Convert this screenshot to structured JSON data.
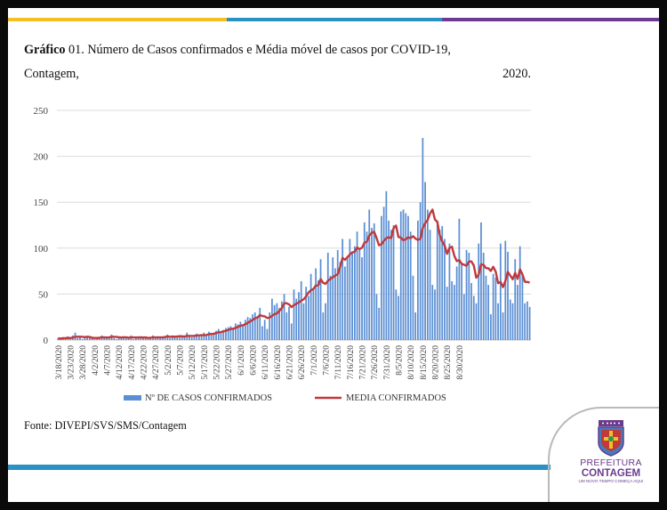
{
  "title": {
    "bold": "Gráfico",
    "line1_rest": " 01. Número de Casos confirmados e Média móvel de casos por COVID-19,",
    "line2_left": "Contagem,",
    "line2_right": "2020."
  },
  "source": "Fonte: DIVEPI/SVS/SMS/Contagem",
  "logo": {
    "line1": "PREFEITURA",
    "line2": "CONTAGEM",
    "line3": "UM NOVO TEMPO COMEÇA AQUI"
  },
  "colors": {
    "bars": "#5b8fd4",
    "line": "#c0393b",
    "band_yellow": "#f3c023",
    "band_blue": "#2a91c4",
    "band_purple": "#6b3a95",
    "logo_purple": "#6a3a8c"
  },
  "chart_data": {
    "type": "bar+line",
    "title": "",
    "xlabel": "",
    "ylabel": "",
    "ylim": [
      0,
      250
    ],
    "yticks": [
      0,
      50,
      100,
      150,
      200,
      250
    ],
    "grid": true,
    "legend_position": "bottom",
    "start_date": "3/18/2020",
    "tick_labels": [
      "3/18/2020",
      "3/23/2020",
      "3/28/2020",
      "4/2/2020",
      "4/7/2020",
      "4/12/2020",
      "4/17/2020",
      "4/22/2020",
      "4/27/2020",
      "5/2/2020",
      "5/7/2020",
      "5/12/2020",
      "5/17/2020",
      "5/22/2020",
      "5/27/2020",
      "6/1/2020",
      "6/6/2020",
      "6/11/2020",
      "6/16/2020",
      "6/21/2020",
      "6/26/2020",
      "7/1/2020",
      "7/6/2020",
      "7/11/2020",
      "7/16/2020",
      "7/21/2020",
      "7/26/2020",
      "7/31/2020",
      "8/5/2020",
      "8/10/2020",
      "8/15/2020",
      "8/20/2020",
      "8/25/2020",
      "8/30/2020"
    ],
    "series": [
      {
        "name": "Nº DE CASOS CONFIRMADOS",
        "type": "bar",
        "values": [
          2,
          1,
          3,
          2,
          4,
          1,
          5,
          8,
          2,
          3,
          1,
          2,
          4,
          3,
          2,
          1,
          3,
          2,
          5,
          4,
          2,
          3,
          6,
          2,
          1,
          3,
          2,
          4,
          3,
          2,
          5,
          1,
          2,
          3,
          4,
          2,
          3,
          1,
          2,
          5,
          3,
          4,
          2,
          3,
          4,
          6,
          2,
          5,
          3,
          4,
          5,
          3,
          4,
          8,
          4,
          3,
          5,
          7,
          4,
          6,
          8,
          5,
          9,
          7,
          8,
          10,
          12,
          9,
          11,
          13,
          14,
          15,
          12,
          18,
          17,
          20,
          16,
          22,
          25,
          24,
          28,
          30,
          26,
          35,
          15,
          22,
          12,
          30,
          45,
          38,
          40,
          35,
          42,
          50,
          30,
          36,
          18,
          55,
          45,
          52,
          64,
          40,
          58,
          48,
          72,
          55,
          78,
          65,
          88,
          30,
          40,
          95,
          70,
          90,
          78,
          98,
          85,
          110,
          80,
          90,
          110,
          95,
          102,
          118,
          98,
          90,
          128,
          118,
          142,
          122,
          127,
          50,
          35,
          135,
          145,
          162,
          130,
          120,
          125,
          55,
          48,
          140,
          142,
          138,
          135,
          118,
          70,
          30,
          130,
          150,
          220,
          172,
          142,
          120,
          60,
          55,
          130,
          120,
          124,
          110,
          58,
          105,
          64,
          60,
          80,
          132,
          82,
          50,
          98,
          95,
          62,
          48,
          40,
          105,
          128,
          95,
          70,
          60,
          28,
          72,
          68,
          40,
          105,
          30,
          108,
          96,
          44,
          40,
          88,
          60,
          102,
          70,
          40,
          42,
          36
        ]
      },
      {
        "name": "MEDIA CONFIRMADOS",
        "type": "line",
        "values": []
      }
    ]
  }
}
